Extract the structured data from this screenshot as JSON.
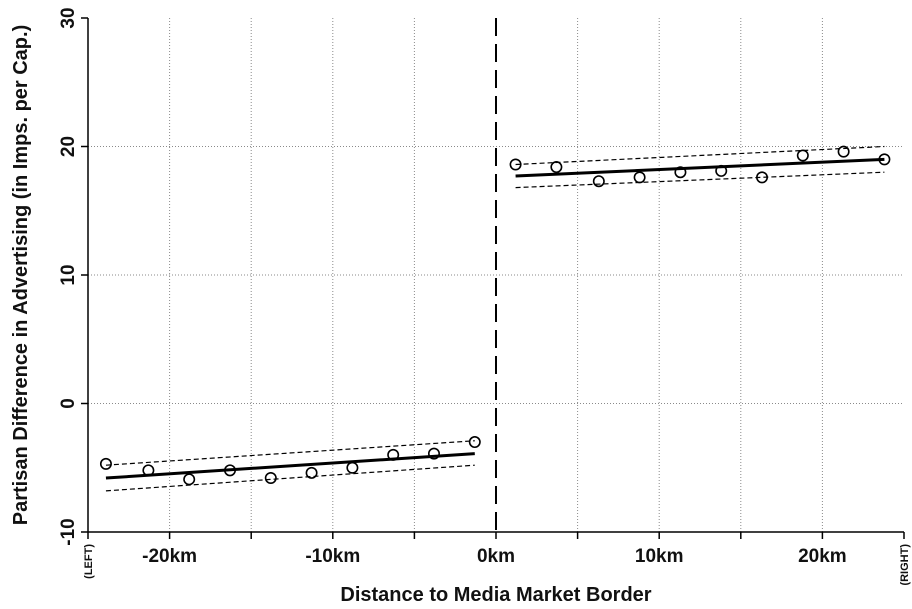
{
  "chart_data": {
    "type": "scatter",
    "title": "",
    "xlabel": "Distance to Media Market Border",
    "ylabel": "Partisan Difference in Advertising (in Imps. per Cap.)",
    "xlim": [
      -25,
      25
    ],
    "ylim": [
      -10,
      30
    ],
    "x_ticks": [
      {
        "value": -25,
        "label": "(LEFT)"
      },
      {
        "value": -20,
        "label": "-20km"
      },
      {
        "value": -15,
        "label": ""
      },
      {
        "value": -10,
        "label": "-10km"
      },
      {
        "value": -5,
        "label": ""
      },
      {
        "value": 0,
        "label": "0km"
      },
      {
        "value": 5,
        "label": ""
      },
      {
        "value": 10,
        "label": "10km"
      },
      {
        "value": 15,
        "label": ""
      },
      {
        "value": 20,
        "label": "20km"
      },
      {
        "value": 25,
        "label": "(RIGHT)"
      }
    ],
    "y_ticks": [
      {
        "value": -10,
        "label": "-10"
      },
      {
        "value": 0,
        "label": "0"
      },
      {
        "value": 10,
        "label": "10"
      },
      {
        "value": 20,
        "label": "20"
      },
      {
        "value": 30,
        "label": "30"
      }
    ],
    "grid": true,
    "border_line": {
      "x": 0,
      "style": "dashed"
    },
    "points": [
      {
        "x": -23.9,
        "y": -4.7
      },
      {
        "x": -21.3,
        "y": -5.2
      },
      {
        "x": -18.8,
        "y": -5.9
      },
      {
        "x": -16.3,
        "y": -5.2
      },
      {
        "x": -13.8,
        "y": -5.8
      },
      {
        "x": -11.3,
        "y": -5.4
      },
      {
        "x": -8.8,
        "y": -5.0
      },
      {
        "x": -6.3,
        "y": -4.0
      },
      {
        "x": -3.8,
        "y": -3.9
      },
      {
        "x": -1.3,
        "y": -3.0
      },
      {
        "x": 1.2,
        "y": 18.6
      },
      {
        "x": 3.7,
        "y": 18.4
      },
      {
        "x": 6.3,
        "y": 17.3
      },
      {
        "x": 8.8,
        "y": 17.6
      },
      {
        "x": 11.3,
        "y": 18.0
      },
      {
        "x": 13.8,
        "y": 18.1
      },
      {
        "x": 16.3,
        "y": 17.6
      },
      {
        "x": 18.8,
        "y": 19.3
      },
      {
        "x": 21.3,
        "y": 19.6
      },
      {
        "x": 23.8,
        "y": 19.0
      }
    ],
    "fits": [
      {
        "side": "left",
        "x": [
          -23.9,
          -1.3
        ],
        "fit": [
          -5.8,
          -3.9
        ],
        "ci_upper": [
          -4.8,
          -2.9
        ],
        "ci_lower": [
          -6.8,
          -4.8
        ]
      },
      {
        "side": "right",
        "x": [
          1.2,
          23.8
        ],
        "fit": [
          17.7,
          19.0
        ],
        "ci_upper": [
          18.6,
          20.0
        ],
        "ci_lower": [
          16.8,
          18.0
        ]
      }
    ]
  }
}
